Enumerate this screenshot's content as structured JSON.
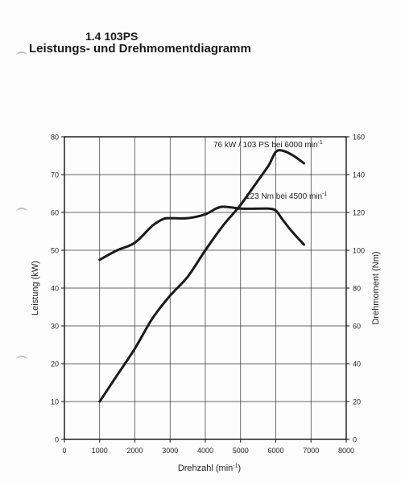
{
  "header": {
    "title": "1.4 103PS",
    "subtitle": "Leistungs- und Drehmomentdiagramm"
  },
  "colors": {
    "curve": "#1a1a1a",
    "grid": "#333333",
    "paper": "#fdfdfd"
  },
  "chart_data": {
    "type": "line",
    "xlabel": "Drehzahl (min-1)",
    "ylabel_left": "Leistung (kW)",
    "ylabel_right": "Drehmoment (Nm)",
    "xlim": [
      0,
      8000
    ],
    "ylim_left": [
      0,
      80
    ],
    "ylim_right": [
      0,
      160
    ],
    "x_ticks": [
      0,
      1000,
      2000,
      3000,
      4000,
      5000,
      6000,
      7000,
      8000
    ],
    "y_ticks_left": [
      0,
      10,
      20,
      30,
      40,
      50,
      60,
      70,
      80
    ],
    "y_ticks_right": [
      0,
      20,
      40,
      60,
      80,
      100,
      120,
      140,
      160
    ],
    "grid": true,
    "series": [
      {
        "axis": "left",
        "x": [
          1000,
          1500,
          2000,
          2500,
          3000,
          3500,
          4000,
          4500,
          5000,
          5500,
          5800,
          6000,
          6200,
          6500,
          6800
        ],
        "y": [
          10,
          17,
          24,
          32,
          38,
          43,
          50,
          56.5,
          62,
          68.5,
          72.5,
          76,
          76.3,
          75,
          73
        ]
      },
      {
        "axis": "right",
        "x": [
          1000,
          1500,
          2000,
          2500,
          2800,
          3000,
          3500,
          4000,
          4300,
          4500,
          4800,
          5000,
          5500,
          5800,
          6000,
          6200,
          6500,
          6800
        ],
        "y": [
          95,
          100,
          104,
          113,
          116.5,
          117,
          117,
          119,
          122,
          123,
          122.5,
          122,
          122,
          122,
          121,
          116,
          109,
          103
        ]
      }
    ],
    "annotations": [
      {
        "text": "76 kW / 103 PS bei 6000 min",
        "superscript": "-1"
      },
      {
        "text": "123 Nm bei 4500 min",
        "superscript": "-1"
      }
    ],
    "xlabel_text": "Drehzahl (min",
    "xlabel_superscript": "-1",
    "xlabel_close": ")"
  }
}
